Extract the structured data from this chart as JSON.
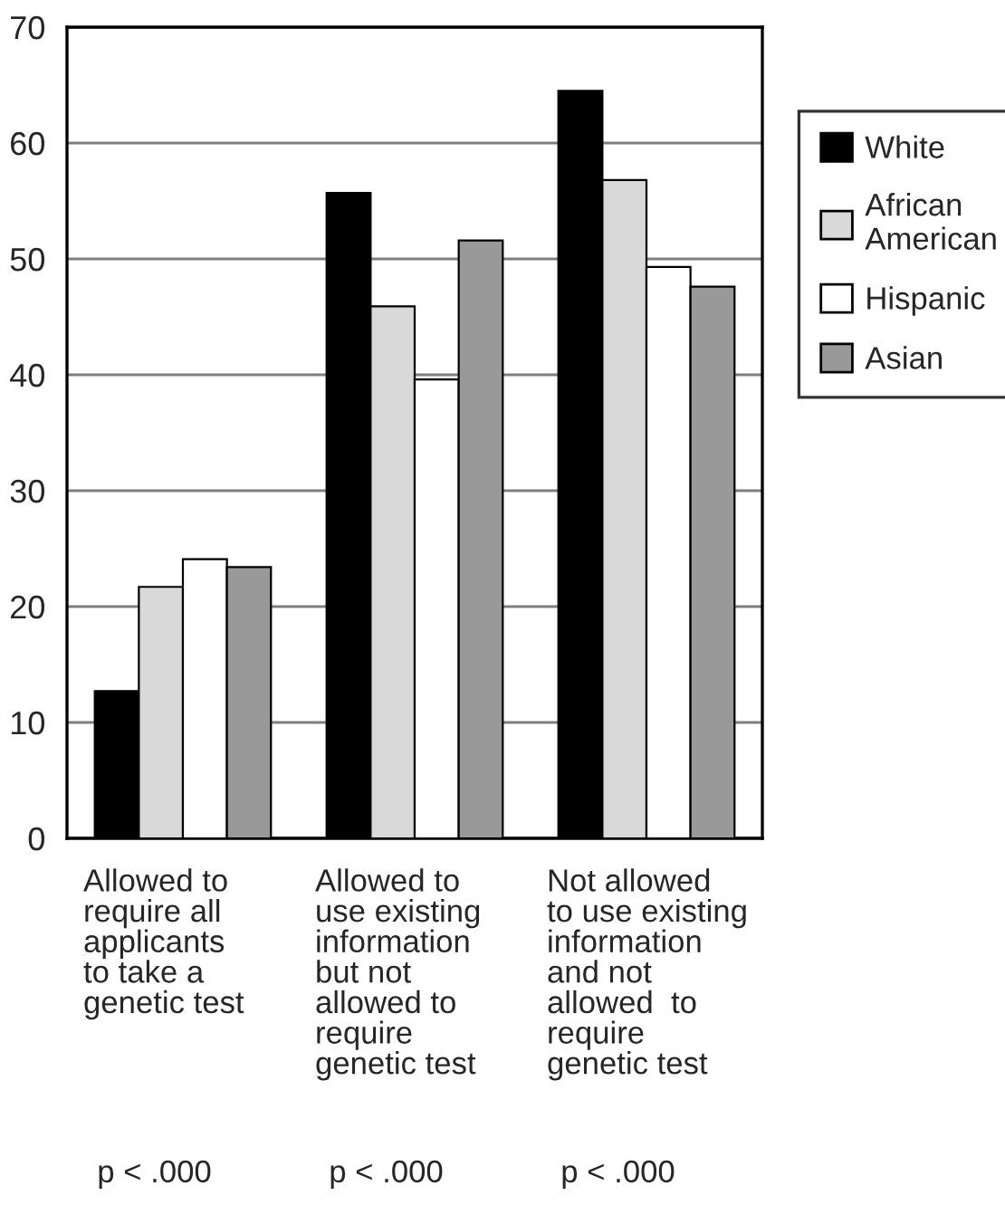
{
  "chart_data": {
    "type": "bar",
    "categories": [
      "Allowed to\nrequire all\napplicants\nto take a\ngenetic test",
      "Allowed to\nuse existing\ninformation\nbut not\nallowed to\nrequire\ngenetic test",
      "Not allowed\nto use existing\ninformation\nand not\nallowed  to\nrequire\ngenetic test"
    ],
    "series": [
      {
        "name": "White",
        "color": "#000000",
        "values": [
          12.7,
          55.7,
          64.5
        ]
      },
      {
        "name": "African\nAmerican",
        "color": "#d9d9d9",
        "values": [
          21.7,
          45.9,
          56.8
        ]
      },
      {
        "name": "Hispanic",
        "color": "#ffffff",
        "values": [
          24.1,
          39.6,
          49.3
        ]
      },
      {
        "name": "Asian",
        "color": "#999999",
        "values": [
          23.4,
          51.6,
          47.6
        ]
      }
    ],
    "ylim": [
      0,
      70
    ],
    "yticks": [
      0,
      10,
      20,
      30,
      40,
      50,
      60,
      70
    ],
    "grid": "y",
    "legend": "right",
    "annotations": [
      "p < .000",
      "p < .000",
      "p < .000"
    ]
  }
}
